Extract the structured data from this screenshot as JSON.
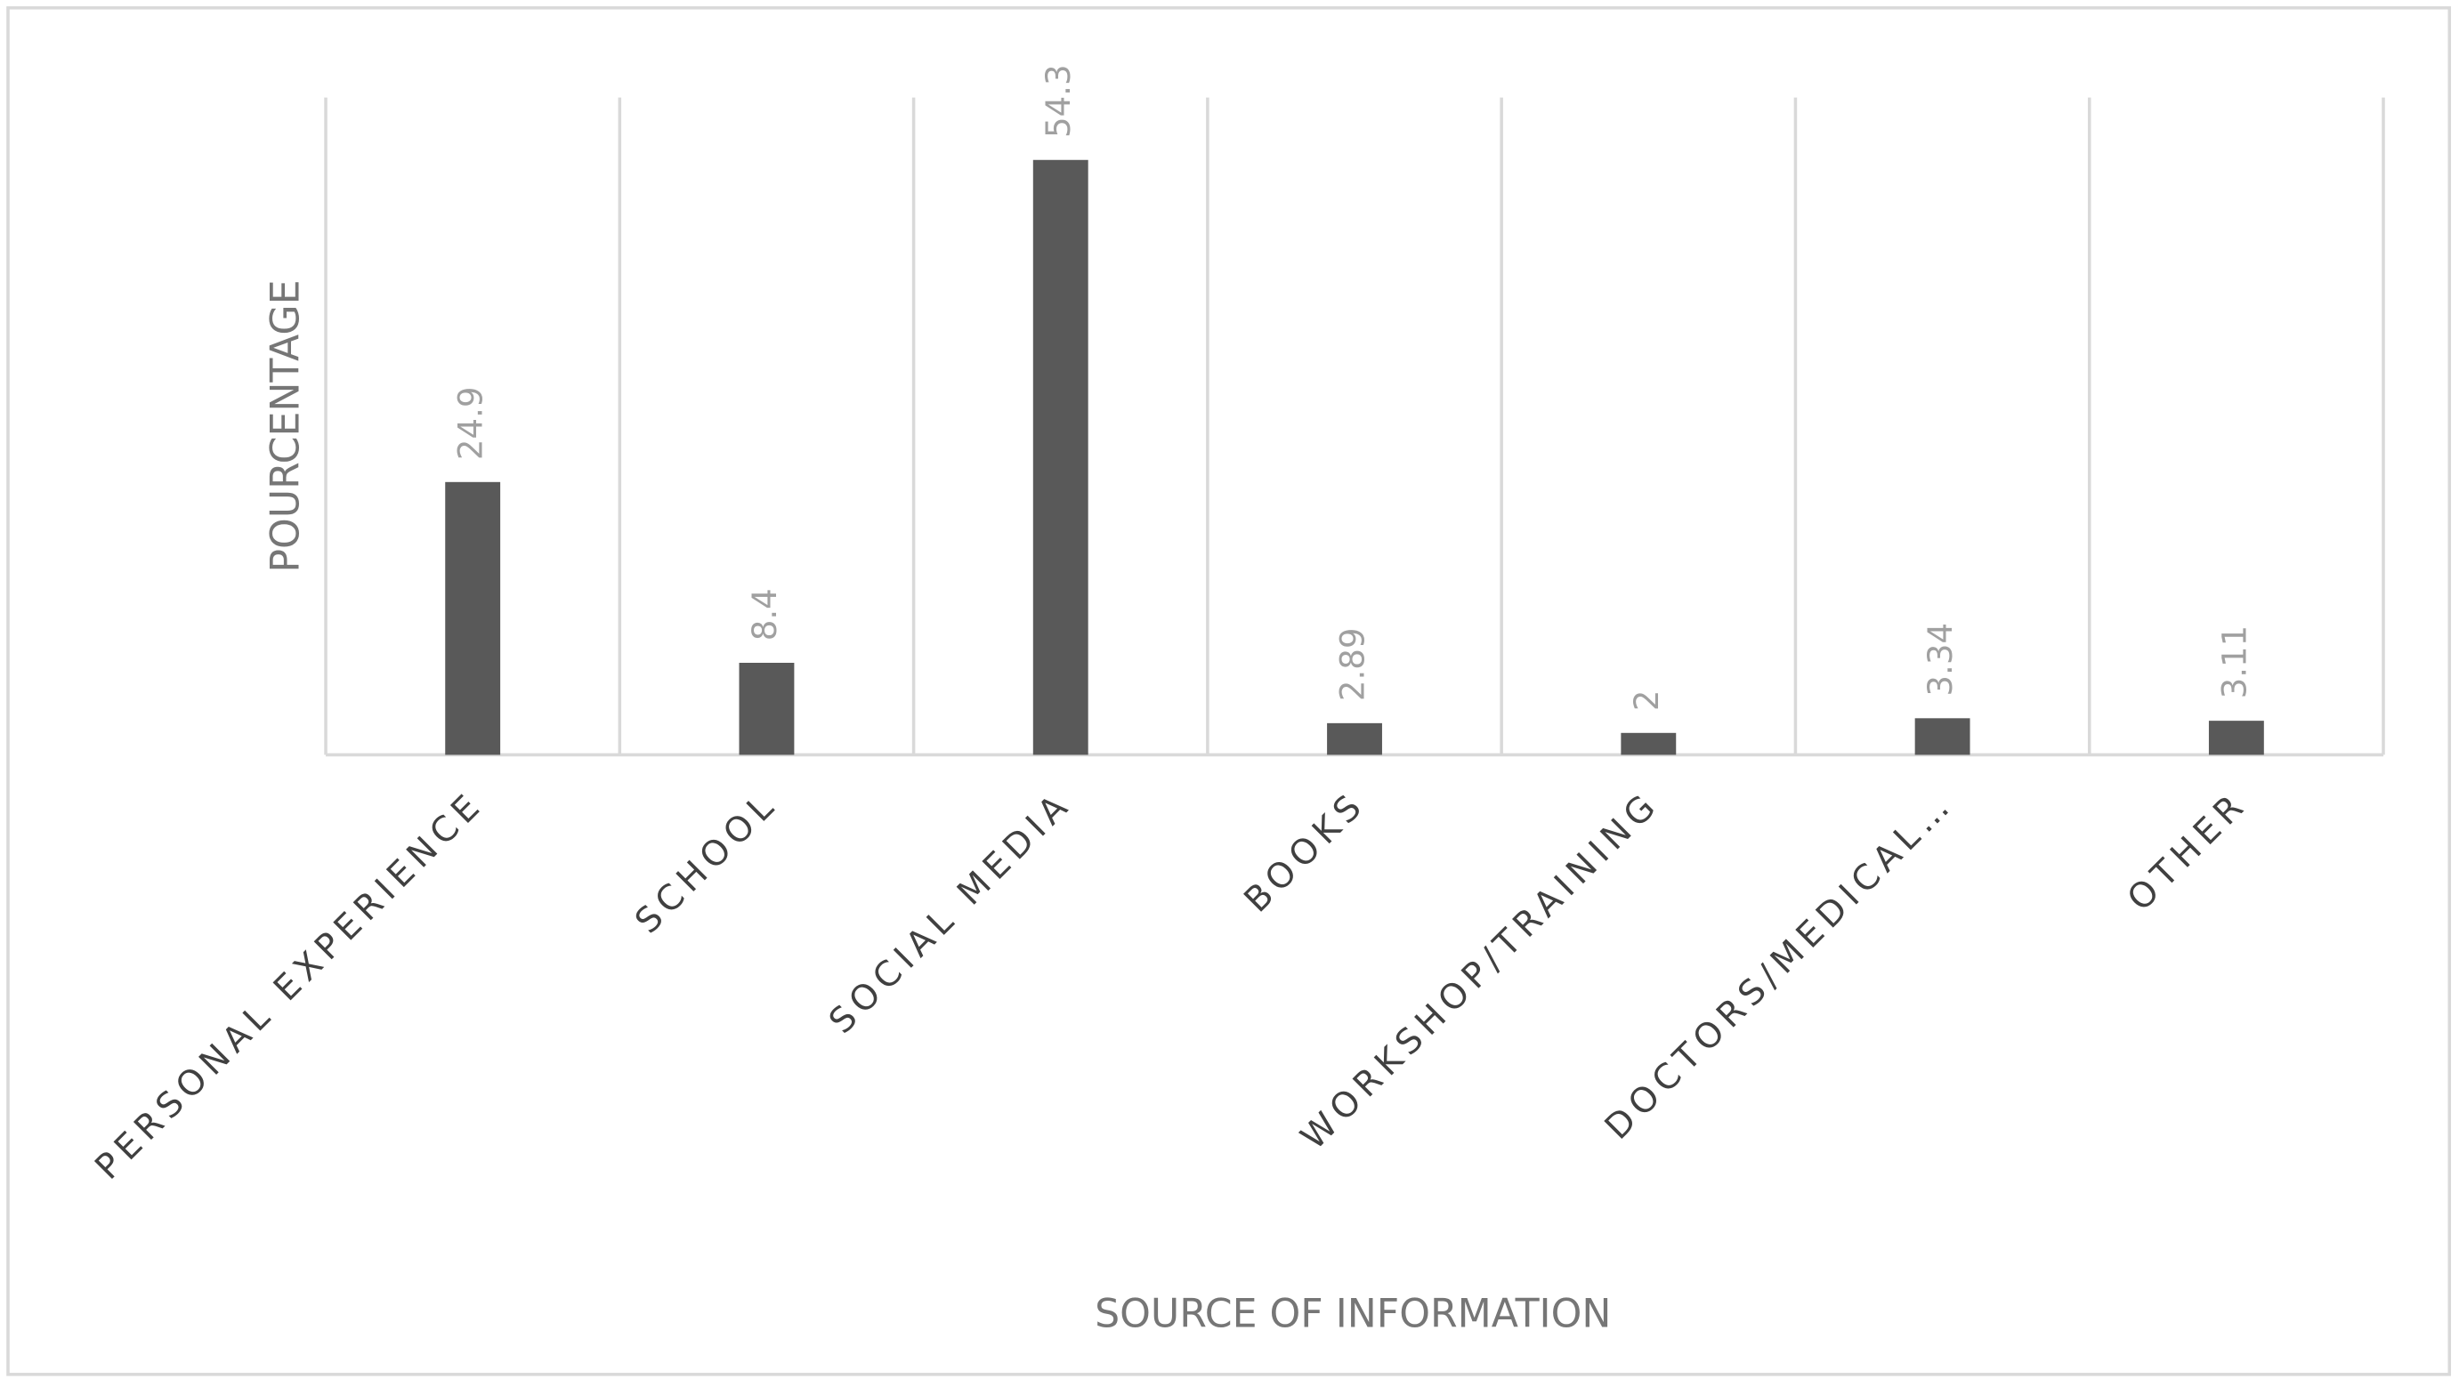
{
  "chart_data": {
    "type": "bar",
    "x_label": "SOURCE OF INFORMATION",
    "y_label": "POURCENTAGE",
    "categories": [
      "PERSONAL EXPERIENCE",
      "SCHOOL",
      "SOCIAL MEDIA",
      "BOOKS",
      "WORKSHOP/TRAINING",
      "DOCTORS/MEDICAL…",
      "OTHER"
    ],
    "values": [
      24.9,
      8.4,
      54.3,
      2.89,
      2,
      3.34,
      3.11
    ],
    "color": "#595959",
    "ylim": [
      0,
      60
    ]
  }
}
